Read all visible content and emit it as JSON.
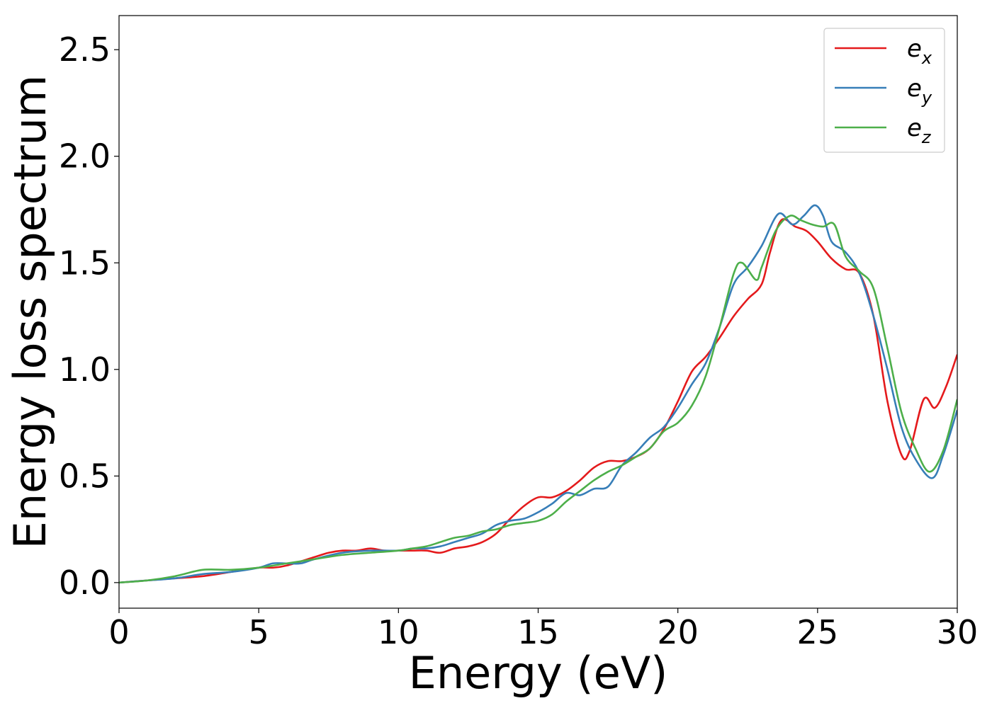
{
  "chart_data": {
    "type": "line",
    "xlabel": "Energy (eV)",
    "ylabel": "Energy loss spectrum",
    "xlim": [
      0,
      30
    ],
    "ylim": [
      -0.12,
      2.66
    ],
    "xticks": [
      0,
      5,
      10,
      15,
      20,
      25,
      30
    ],
    "yticks": [
      0.0,
      0.5,
      1.0,
      1.5,
      2.0,
      2.5
    ],
    "xtick_labels": [
      "0",
      "5",
      "10",
      "15",
      "20",
      "25",
      "30"
    ],
    "ytick_labels": [
      "0.0",
      "0.5",
      "1.0",
      "1.5",
      "2.0",
      "2.5"
    ],
    "grid": false,
    "legend_position": "top-right",
    "series": [
      {
        "name": "e_x",
        "base": "e",
        "sub": "x",
        "color": "#e41a1c",
        "points": [
          [
            0,
            0.0
          ],
          [
            1,
            0.01
          ],
          [
            2,
            0.02
          ],
          [
            3,
            0.03
          ],
          [
            4,
            0.05
          ],
          [
            5,
            0.07
          ],
          [
            5.5,
            0.07
          ],
          [
            6,
            0.08
          ],
          [
            7,
            0.12
          ],
          [
            7.5,
            0.14
          ],
          [
            8,
            0.15
          ],
          [
            8.5,
            0.15
          ],
          [
            9,
            0.16
          ],
          [
            9.5,
            0.15
          ],
          [
            10,
            0.15
          ],
          [
            10.5,
            0.15
          ],
          [
            11,
            0.15
          ],
          [
            11.5,
            0.14
          ],
          [
            12,
            0.16
          ],
          [
            12.5,
            0.17
          ],
          [
            13,
            0.19
          ],
          [
            13.5,
            0.23
          ],
          [
            14,
            0.3
          ],
          [
            14.5,
            0.36
          ],
          [
            15,
            0.4
          ],
          [
            15.5,
            0.4
          ],
          [
            16,
            0.43
          ],
          [
            16.5,
            0.48
          ],
          [
            17,
            0.54
          ],
          [
            17.5,
            0.57
          ],
          [
            18,
            0.57
          ],
          [
            18.5,
            0.59
          ],
          [
            19,
            0.63
          ],
          [
            19.5,
            0.72
          ],
          [
            20,
            0.85
          ],
          [
            20.5,
            0.99
          ],
          [
            21,
            1.06
          ],
          [
            21.5,
            1.15
          ],
          [
            22,
            1.25
          ],
          [
            22.5,
            1.33
          ],
          [
            23,
            1.4
          ],
          [
            23.3,
            1.55
          ],
          [
            23.7,
            1.7
          ],
          [
            24.2,
            1.67
          ],
          [
            24.6,
            1.65
          ],
          [
            25,
            1.6
          ],
          [
            25.5,
            1.52
          ],
          [
            26,
            1.47
          ],
          [
            26.5,
            1.45
          ],
          [
            27,
            1.25
          ],
          [
            27.5,
            0.85
          ],
          [
            28,
            0.6
          ],
          [
            28.3,
            0.62
          ],
          [
            28.8,
            0.86
          ],
          [
            29.2,
            0.82
          ],
          [
            29.6,
            0.92
          ],
          [
            30,
            1.07
          ]
        ]
      },
      {
        "name": "e_y",
        "base": "e",
        "sub": "y",
        "color": "#377eb8",
        "points": [
          [
            0,
            0.0
          ],
          [
            1,
            0.01
          ],
          [
            2,
            0.02
          ],
          [
            3,
            0.04
          ],
          [
            4,
            0.05
          ],
          [
            5,
            0.07
          ],
          [
            5.5,
            0.09
          ],
          [
            6,
            0.09
          ],
          [
            6.5,
            0.09
          ],
          [
            7,
            0.11
          ],
          [
            8,
            0.14
          ],
          [
            9,
            0.15
          ],
          [
            10,
            0.15
          ],
          [
            10.5,
            0.16
          ],
          [
            11,
            0.16
          ],
          [
            11.5,
            0.17
          ],
          [
            12,
            0.19
          ],
          [
            12.5,
            0.21
          ],
          [
            13,
            0.23
          ],
          [
            13.5,
            0.27
          ],
          [
            14,
            0.29
          ],
          [
            14.5,
            0.3
          ],
          [
            15,
            0.33
          ],
          [
            15.5,
            0.37
          ],
          [
            16,
            0.42
          ],
          [
            16.5,
            0.41
          ],
          [
            17,
            0.44
          ],
          [
            17.5,
            0.45
          ],
          [
            18,
            0.55
          ],
          [
            18.5,
            0.61
          ],
          [
            19,
            0.68
          ],
          [
            19.5,
            0.73
          ],
          [
            20,
            0.82
          ],
          [
            20.5,
            0.93
          ],
          [
            21,
            1.03
          ],
          [
            21.5,
            1.2
          ],
          [
            22,
            1.4
          ],
          [
            22.5,
            1.48
          ],
          [
            23,
            1.58
          ],
          [
            23.6,
            1.73
          ],
          [
            24.1,
            1.68
          ],
          [
            24.5,
            1.72
          ],
          [
            24.9,
            1.77
          ],
          [
            25.2,
            1.72
          ],
          [
            25.5,
            1.6
          ],
          [
            26,
            1.55
          ],
          [
            26.5,
            1.45
          ],
          [
            27,
            1.25
          ],
          [
            27.5,
            1.0
          ],
          [
            28,
            0.73
          ],
          [
            28.5,
            0.58
          ],
          [
            29.1,
            0.49
          ],
          [
            29.5,
            0.6
          ],
          [
            30,
            0.81
          ]
        ]
      },
      {
        "name": "e_z",
        "base": "e",
        "sub": "z",
        "color": "#4daf4a",
        "points": [
          [
            0,
            0.0
          ],
          [
            1,
            0.01
          ],
          [
            2,
            0.03
          ],
          [
            3,
            0.06
          ],
          [
            4,
            0.06
          ],
          [
            5,
            0.07
          ],
          [
            6,
            0.09
          ],
          [
            7,
            0.11
          ],
          [
            8,
            0.13
          ],
          [
            9,
            0.14
          ],
          [
            10,
            0.15
          ],
          [
            10.5,
            0.16
          ],
          [
            11,
            0.17
          ],
          [
            11.5,
            0.19
          ],
          [
            12,
            0.21
          ],
          [
            12.5,
            0.22
          ],
          [
            13,
            0.24
          ],
          [
            13.5,
            0.25
          ],
          [
            14,
            0.27
          ],
          [
            14.5,
            0.28
          ],
          [
            15,
            0.29
          ],
          [
            15.5,
            0.32
          ],
          [
            16,
            0.38
          ],
          [
            16.5,
            0.43
          ],
          [
            17,
            0.48
          ],
          [
            17.5,
            0.52
          ],
          [
            18,
            0.55
          ],
          [
            18.5,
            0.59
          ],
          [
            19,
            0.63
          ],
          [
            19.5,
            0.71
          ],
          [
            20,
            0.75
          ],
          [
            20.5,
            0.83
          ],
          [
            21,
            0.97
          ],
          [
            21.5,
            1.2
          ],
          [
            22,
            1.45
          ],
          [
            22.3,
            1.5
          ],
          [
            22.8,
            1.42
          ],
          [
            23,
            1.48
          ],
          [
            23.5,
            1.65
          ],
          [
            24,
            1.72
          ],
          [
            24.4,
            1.7
          ],
          [
            24.8,
            1.68
          ],
          [
            25.2,
            1.67
          ],
          [
            25.6,
            1.68
          ],
          [
            26,
            1.53
          ],
          [
            26.5,
            1.46
          ],
          [
            27,
            1.38
          ],
          [
            27.5,
            1.1
          ],
          [
            28,
            0.8
          ],
          [
            28.5,
            0.63
          ],
          [
            29,
            0.52
          ],
          [
            29.5,
            0.62
          ],
          [
            30,
            0.86
          ]
        ]
      }
    ]
  }
}
